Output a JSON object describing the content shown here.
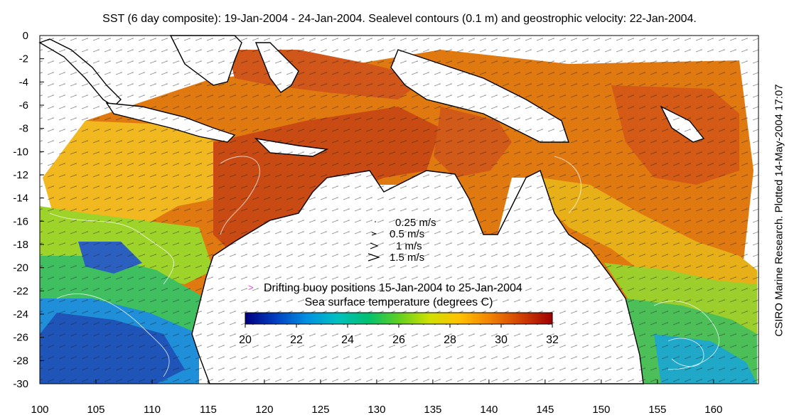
{
  "title": "SST (6 day composite): 19-Jan-2004 - 24-Jan-2004. Sealevel contours (0.1 m) and geostrophic velocity: 22-Jan-2004.",
  "credit": "CSIRO Marine Research. Plotted 14-May-2004 17:07",
  "map": {
    "lon_range": [
      100,
      164
    ],
    "lat_range": [
      -30,
      0
    ],
    "x_ticks": [
      "100",
      "105",
      "110",
      "115",
      "120",
      "125",
      "130",
      "135",
      "140",
      "145",
      "150",
      "155",
      "160"
    ],
    "y_ticks": [
      "0",
      "-2",
      "-4",
      "-6",
      "-8",
      "-10",
      "-12",
      "-14",
      "-16",
      "-18",
      "-20",
      "-22",
      "-24",
      "-26",
      "-28",
      "-30"
    ]
  },
  "velocity_legend": [
    "0.25 m/s",
    "0.5 m/s",
    "1 m/s",
    "1.5 m/s"
  ],
  "buoy_legend": {
    "marker": ">",
    "marker_color": "#e040e0",
    "label": "Drifting buoy positions 15-Jan-2004 to 25-Jan-2004"
  },
  "colorbar": {
    "title": "Sea surface temperature (degrees C)",
    "min": 20,
    "max": 32,
    "ticks": [
      "20",
      "22",
      "24",
      "26",
      "28",
      "30",
      "32"
    ],
    "colors": [
      "#000080",
      "#0040c0",
      "#0090e0",
      "#00c0c0",
      "#00c070",
      "#60d020",
      "#d0e000",
      "#ffc000",
      "#f08000",
      "#d04000",
      "#a00000"
    ]
  }
}
